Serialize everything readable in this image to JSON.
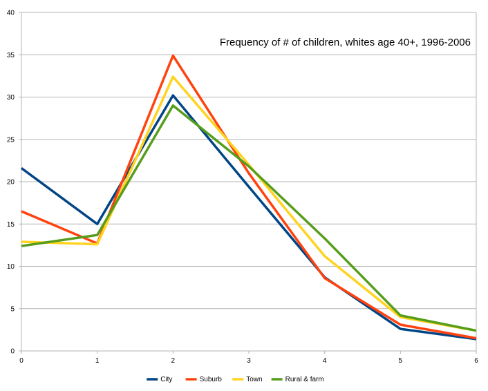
{
  "chart_data": {
    "type": "line",
    "title": "Frequency of # of children, whites age 40+, 1996-2006",
    "xlabel": "",
    "ylabel": "",
    "x": [
      0,
      1,
      2,
      3,
      4,
      5,
      6
    ],
    "xlim": [
      0,
      6
    ],
    "ylim": [
      0,
      40
    ],
    "yticks": [
      0,
      5,
      10,
      15,
      20,
      25,
      30,
      35,
      40
    ],
    "grid": "horizontal",
    "legend": "bottom",
    "series": [
      {
        "name": "City",
        "color": "#004586",
        "values": [
          21.6,
          15.0,
          30.2,
          19.4,
          8.7,
          2.6,
          1.4
        ]
      },
      {
        "name": "Suburb",
        "color": "#ff420e",
        "values": [
          16.5,
          12.7,
          34.9,
          21.0,
          8.6,
          3.1,
          1.5
        ]
      },
      {
        "name": "Town",
        "color": "#ffd320",
        "values": [
          12.9,
          12.6,
          32.4,
          22.0,
          11.2,
          4.0,
          2.4
        ]
      },
      {
        "name": "Rural & farm",
        "color": "#579d1c",
        "values": [
          12.4,
          13.7,
          29.0,
          21.8,
          13.3,
          4.2,
          2.4
        ]
      }
    ]
  }
}
